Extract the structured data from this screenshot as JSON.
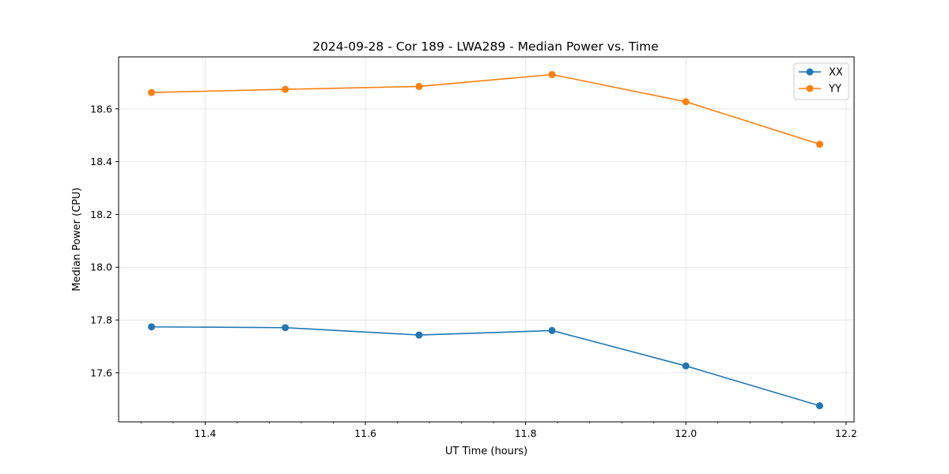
{
  "chart_data": {
    "type": "line",
    "title": "2024-09-28 - Cor 189 - LWA289 - Median Power vs. Time",
    "xlabel": "UT Time (hours)",
    "ylabel": "Median Power (CPU)",
    "xlim": [
      11.292,
      12.21
    ],
    "ylim": [
      17.414,
      18.797
    ],
    "xticks": [
      11.4,
      11.6,
      11.8,
      12.0,
      12.2
    ],
    "xtick_labels": [
      "11.4",
      "11.6",
      "11.8",
      "12.0",
      "12.2"
    ],
    "yticks": [
      17.6,
      17.8,
      18.0,
      18.2,
      18.4,
      18.6
    ],
    "ytick_labels": [
      "17.6",
      "17.8",
      "18.0",
      "18.2",
      "18.4",
      "18.6"
    ],
    "grid": true,
    "legend_position": "top-right",
    "x": [
      11.333,
      11.5,
      11.667,
      11.833,
      12.0,
      12.167
    ],
    "series": [
      {
        "name": "XX",
        "color": "#1f77b4",
        "values": [
          17.774,
          17.771,
          17.743,
          17.76,
          17.626,
          17.475
        ]
      },
      {
        "name": "YY",
        "color": "#ff7f0e",
        "values": [
          18.662,
          18.674,
          18.685,
          18.73,
          18.627,
          18.466
        ]
      }
    ]
  }
}
